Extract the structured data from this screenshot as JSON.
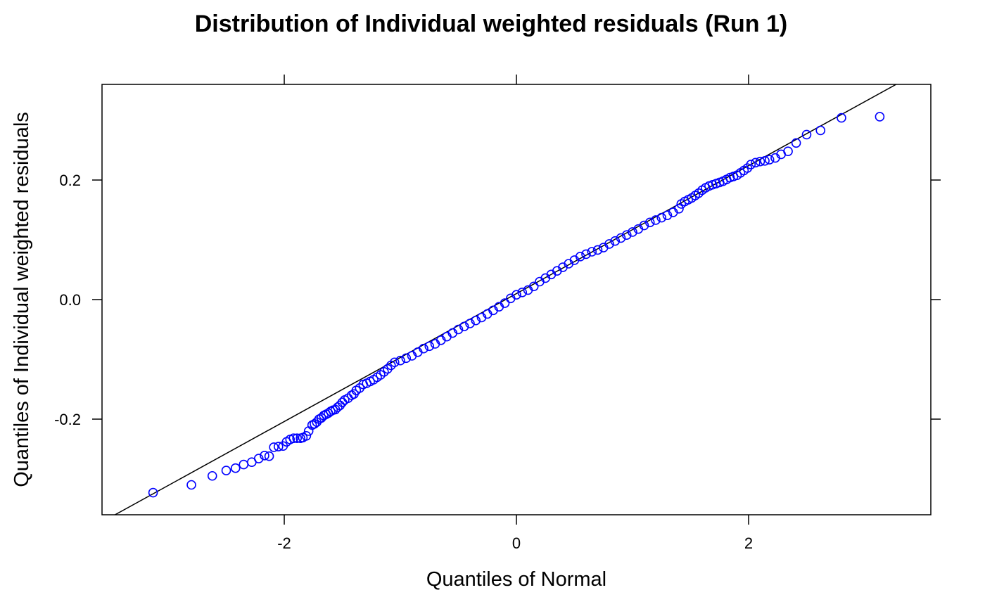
{
  "chart_data": {
    "type": "scatter",
    "title": "Distribution of Individual weighted residuals (Run 1)",
    "xlabel": "Quantiles of Normal",
    "ylabel": "Quantiles of Individual weighted residuals",
    "xlim": [
      -3.57,
      3.57
    ],
    "ylim": [
      -0.36,
      0.36
    ],
    "x_ticks": [
      -2,
      0,
      2
    ],
    "x_tick_labels": [
      "-2",
      "0",
      "2"
    ],
    "y_ticks": [
      -0.2,
      0.0,
      0.2
    ],
    "y_tick_labels": [
      "-0.2",
      "0.0",
      "0.2"
    ],
    "grid": false,
    "point_color": "#0000ff",
    "line_color": "#000000",
    "reference_line": {
      "intercept": 0.01,
      "slope": 0.107
    },
    "points": [
      [
        -3.13,
        -0.323
      ],
      [
        -2.8,
        -0.31
      ],
      [
        -2.62,
        -0.295
      ],
      [
        -2.5,
        -0.286
      ],
      [
        -2.42,
        -0.282
      ],
      [
        -2.35,
        -0.276
      ],
      [
        -2.28,
        -0.272
      ],
      [
        -2.22,
        -0.266
      ],
      [
        -2.17,
        -0.261
      ],
      [
        -2.13,
        -0.262
      ],
      [
        -2.09,
        -0.247
      ],
      [
        -2.05,
        -0.246
      ],
      [
        -2.01,
        -0.245
      ],
      [
        -1.98,
        -0.238
      ],
      [
        -1.95,
        -0.234
      ],
      [
        -1.92,
        -0.232
      ],
      [
        -1.89,
        -0.232
      ],
      [
        -1.86,
        -0.232
      ],
      [
        -1.84,
        -0.231
      ],
      [
        -1.81,
        -0.228
      ],
      [
        -1.79,
        -0.22
      ],
      [
        -1.76,
        -0.21
      ],
      [
        -1.74,
        -0.208
      ],
      [
        -1.72,
        -0.205
      ],
      [
        -1.7,
        -0.2
      ],
      [
        -1.68,
        -0.198
      ],
      [
        -1.66,
        -0.194
      ],
      [
        -1.64,
        -0.192
      ],
      [
        -1.62,
        -0.19
      ],
      [
        -1.6,
        -0.187
      ],
      [
        -1.58,
        -0.185
      ],
      [
        -1.56,
        -0.184
      ],
      [
        -1.54,
        -0.18
      ],
      [
        -1.52,
        -0.177
      ],
      [
        -1.5,
        -0.172
      ],
      [
        -1.48,
        -0.168
      ],
      [
        -1.45,
        -0.165
      ],
      [
        -1.42,
        -0.16
      ],
      [
        -1.4,
        -0.158
      ],
      [
        -1.38,
        -0.152
      ],
      [
        -1.35,
        -0.148
      ],
      [
        -1.32,
        -0.142
      ],
      [
        -1.29,
        -0.14
      ],
      [
        -1.26,
        -0.137
      ],
      [
        -1.23,
        -0.134
      ],
      [
        -1.2,
        -0.13
      ],
      [
        -1.17,
        -0.126
      ],
      [
        -1.14,
        -0.121
      ],
      [
        -1.11,
        -0.116
      ],
      [
        -1.08,
        -0.11
      ],
      [
        -1.05,
        -0.105
      ],
      [
        -1.0,
        -0.102
      ],
      [
        -0.95,
        -0.098
      ],
      [
        -0.9,
        -0.094
      ],
      [
        -0.85,
        -0.088
      ],
      [
        -0.8,
        -0.082
      ],
      [
        -0.75,
        -0.078
      ],
      [
        -0.7,
        -0.074
      ],
      [
        -0.65,
        -0.068
      ],
      [
        -0.6,
        -0.062
      ],
      [
        -0.55,
        -0.056
      ],
      [
        -0.5,
        -0.05
      ],
      [
        -0.45,
        -0.045
      ],
      [
        -0.4,
        -0.04
      ],
      [
        -0.35,
        -0.035
      ],
      [
        -0.3,
        -0.03
      ],
      [
        -0.25,
        -0.024
      ],
      [
        -0.2,
        -0.018
      ],
      [
        -0.15,
        -0.012
      ],
      [
        -0.1,
        -0.006
      ],
      [
        -0.05,
        0.002
      ],
      [
        0.0,
        0.008
      ],
      [
        0.05,
        0.012
      ],
      [
        0.1,
        0.016
      ],
      [
        0.15,
        0.022
      ],
      [
        0.2,
        0.03
      ],
      [
        0.25,
        0.036
      ],
      [
        0.3,
        0.042
      ],
      [
        0.35,
        0.048
      ],
      [
        0.4,
        0.054
      ],
      [
        0.45,
        0.06
      ],
      [
        0.5,
        0.066
      ],
      [
        0.55,
        0.072
      ],
      [
        0.6,
        0.076
      ],
      [
        0.65,
        0.08
      ],
      [
        0.7,
        0.083
      ],
      [
        0.75,
        0.087
      ],
      [
        0.8,
        0.093
      ],
      [
        0.85,
        0.098
      ],
      [
        0.9,
        0.103
      ],
      [
        0.95,
        0.108
      ],
      [
        1.0,
        0.113
      ],
      [
        1.05,
        0.118
      ],
      [
        1.1,
        0.124
      ],
      [
        1.15,
        0.129
      ],
      [
        1.2,
        0.133
      ],
      [
        1.25,
        0.137
      ],
      [
        1.3,
        0.141
      ],
      [
        1.35,
        0.146
      ],
      [
        1.4,
        0.152
      ],
      [
        1.42,
        0.16
      ],
      [
        1.45,
        0.164
      ],
      [
        1.48,
        0.167
      ],
      [
        1.51,
        0.17
      ],
      [
        1.54,
        0.174
      ],
      [
        1.57,
        0.178
      ],
      [
        1.6,
        0.183
      ],
      [
        1.63,
        0.187
      ],
      [
        1.66,
        0.19
      ],
      [
        1.69,
        0.192
      ],
      [
        1.72,
        0.194
      ],
      [
        1.75,
        0.196
      ],
      [
        1.78,
        0.198
      ],
      [
        1.81,
        0.201
      ],
      [
        1.84,
        0.204
      ],
      [
        1.87,
        0.206
      ],
      [
        1.9,
        0.208
      ],
      [
        1.93,
        0.212
      ],
      [
        1.96,
        0.216
      ],
      [
        1.99,
        0.22
      ],
      [
        2.02,
        0.226
      ],
      [
        2.06,
        0.229
      ],
      [
        2.1,
        0.231
      ],
      [
        2.14,
        0.232
      ],
      [
        2.18,
        0.234
      ],
      [
        2.23,
        0.237
      ],
      [
        2.28,
        0.243
      ],
      [
        2.34,
        0.248
      ],
      [
        2.41,
        0.262
      ],
      [
        2.5,
        0.276
      ],
      [
        2.62,
        0.283
      ],
      [
        2.8,
        0.304
      ],
      [
        3.13,
        0.306
      ]
    ]
  }
}
